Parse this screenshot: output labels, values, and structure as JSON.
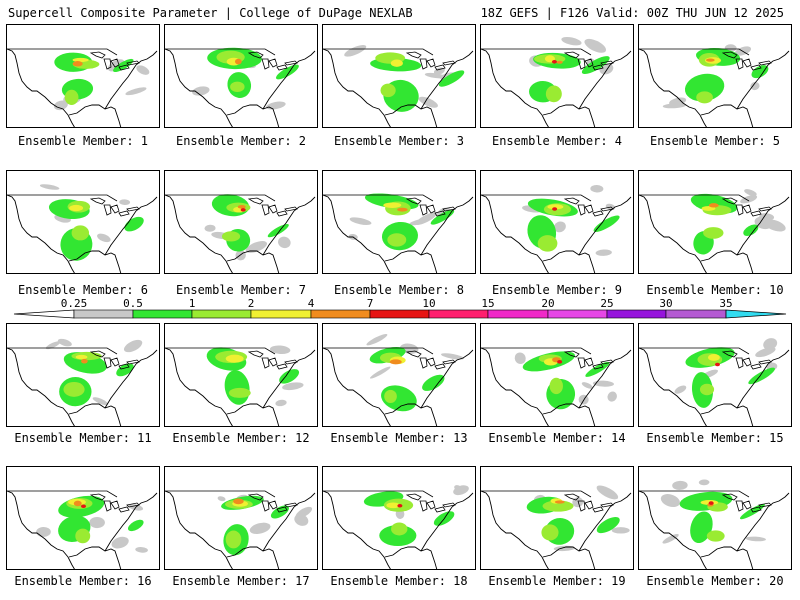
{
  "header": {
    "title_left": "Supercell Composite Parameter | College of DuPage NEXLAB",
    "title_right": "18Z GEFS | F126 Valid: 00Z THU JUN 12 2025"
  },
  "colorbar": {
    "ticks": [
      "0.25",
      "0.5",
      "1",
      "2",
      "4",
      "7",
      "10",
      "15",
      "20",
      "25",
      "30",
      "35"
    ],
    "colors": [
      "#c8c8c8",
      "#32e632",
      "#9aeb32",
      "#f0f032",
      "#f08c1e",
      "#e61414",
      "#ff1e6e",
      "#f028c8",
      "#e646e6",
      "#9614dc",
      "#b45ad2",
      "#32dcf0"
    ]
  },
  "panels": [
    {
      "label": "Ensemble Member: 1"
    },
    {
      "label": "Ensemble Member: 2"
    },
    {
      "label": "Ensemble Member: 3"
    },
    {
      "label": "Ensemble Member: 4"
    },
    {
      "label": "Ensemble Member: 5"
    },
    {
      "label": "Ensemble Member: 6"
    },
    {
      "label": "Ensemble Member: 7"
    },
    {
      "label": "Ensemble Member: 8"
    },
    {
      "label": "Ensemble Member: 9"
    },
    {
      "label": "Ensemble Member: 10"
    },
    {
      "label": "Ensemble Member: 11"
    },
    {
      "label": "Ensemble Member: 12"
    },
    {
      "label": "Ensemble Member: 13"
    },
    {
      "label": "Ensemble Member: 14"
    },
    {
      "label": "Ensemble Member: 15"
    },
    {
      "label": "Ensemble Member: 16"
    },
    {
      "label": "Ensemble Member: 17"
    },
    {
      "label": "Ensemble Member: 18"
    },
    {
      "label": "Ensemble Member: 19"
    },
    {
      "label": "Ensemble Member: 20"
    }
  ]
}
